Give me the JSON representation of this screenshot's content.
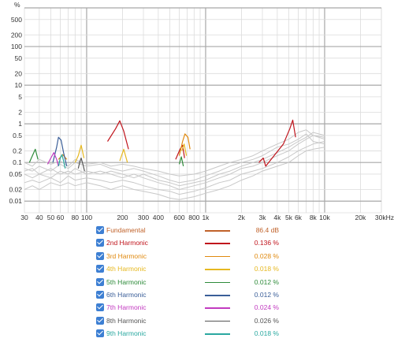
{
  "chart_data": {
    "type": "line",
    "xscale": "log",
    "yscale": "log",
    "xlim": [
      30,
      30000
    ],
    "ylim": [
      0.005,
      1000
    ],
    "y_unit": "%",
    "x_unit": "kHz",
    "grid": true,
    "x_ticks": [
      {
        "v": 30,
        "t": "30"
      },
      {
        "v": 40,
        "t": "40"
      },
      {
        "v": 50,
        "t": "50"
      },
      {
        "v": 60,
        "t": "60"
      },
      {
        "v": 80,
        "t": "80"
      },
      {
        "v": 100,
        "t": "100"
      },
      {
        "v": 200,
        "t": "200"
      },
      {
        "v": 300,
        "t": "300"
      },
      {
        "v": 400,
        "t": "400"
      },
      {
        "v": 600,
        "t": "600"
      },
      {
        "v": 800,
        "t": "800"
      },
      {
        "v": 1000,
        "t": "1k"
      },
      {
        "v": 2000,
        "t": "2k"
      },
      {
        "v": 3000,
        "t": "3k"
      },
      {
        "v": 4000,
        "t": "4k"
      },
      {
        "v": 5000,
        "t": "5k"
      },
      {
        "v": 6000,
        "t": "6k"
      },
      {
        "v": 8000,
        "t": "8k"
      },
      {
        "v": 10000,
        "t": "10k"
      },
      {
        "v": 20000,
        "t": "20k"
      },
      {
        "v": 30000,
        "t": "30kHz"
      }
    ],
    "y_ticks": [
      {
        "v": 500,
        "t": "500"
      },
      {
        "v": 200,
        "t": "200"
      },
      {
        "v": 100,
        "t": "100"
      },
      {
        "v": 50,
        "t": "50"
      },
      {
        "v": 20,
        "t": "20"
      },
      {
        "v": 10,
        "t": "10"
      },
      {
        "v": 5,
        "t": "5"
      },
      {
        "v": 2,
        "t": "2"
      },
      {
        "v": 1,
        "t": "1"
      },
      {
        "v": 0.5,
        "t": "0.5"
      },
      {
        "v": 0.2,
        "t": "0.2"
      },
      {
        "v": 0.1,
        "t": "0.1"
      },
      {
        "v": 0.05,
        "t": "0.05"
      },
      {
        "v": 0.02,
        "t": "0.02"
      },
      {
        "v": 0.01,
        "t": "0.01"
      }
    ],
    "series": [
      {
        "name": "Fundamental",
        "value_text": "86.4 dB",
        "color": "#c0622a",
        "x": [
          30,
          20000
        ],
        "y": [
          100,
          100
        ]
      },
      {
        "name": "2nd Harmonic",
        "value_text": "0.136 %",
        "color": "#c0141c",
        "x": [
          150,
          175,
          190,
          205,
          225,
          560,
          610,
          640,
          665,
          2800,
          3050,
          3200,
          4500,
          5100,
          5400,
          5700
        ],
        "y": [
          0.35,
          0.75,
          1.2,
          0.65,
          0.22,
          0.12,
          0.22,
          0.28,
          0.13,
          0.1,
          0.13,
          0.08,
          0.3,
          0.75,
          1.25,
          0.45
        ]
      },
      {
        "name": "3rd Harmonic",
        "value_text": "0.028 %",
        "color": "#e08a10",
        "x": [
          58,
          63,
          68,
          600,
          640,
          670,
          710,
          740
        ],
        "y": [
          0.12,
          0.16,
          0.12,
          0.15,
          0.35,
          0.55,
          0.45,
          0.22
        ]
      },
      {
        "name": "4th Harmonic",
        "value_text": "0.018 %",
        "color": "#e6b820",
        "x": [
          80,
          85,
          90,
          95,
          190,
          205,
          220,
          630,
          660,
          690
        ],
        "y": [
          0.1,
          0.15,
          0.28,
          0.13,
          0.11,
          0.22,
          0.1,
          0.2,
          0.3,
          0.15
        ]
      },
      {
        "name": "5th Harmonic",
        "value_text": "0.012 %",
        "color": "#2e8b3a",
        "x": [
          33,
          35,
          37,
          39,
          600,
          625,
          650
        ],
        "y": [
          0.1,
          0.15,
          0.22,
          0.12,
          0.09,
          0.14,
          0.08
        ]
      },
      {
        "name": "6th Harmonic",
        "value_text": "0.012 %",
        "color": "#3a5e98",
        "x": [
          52,
          56,
          58,
          61,
          64,
          68
        ],
        "y": [
          0.1,
          0.25,
          0.45,
          0.38,
          0.18,
          0.08
        ]
      },
      {
        "name": "7th Harmonic",
        "value_text": "0.024 %",
        "color": "#c23ac0",
        "x": [
          47,
          50,
          53,
          56,
          58
        ],
        "y": [
          0.09,
          0.13,
          0.18,
          0.12,
          0.08
        ]
      },
      {
        "name": "8th Harmonic",
        "value_text": "0.026 %",
        "color": "#555555",
        "x": [
          85,
          88,
          90,
          93,
          96
        ],
        "y": [
          0.07,
          0.11,
          0.13,
          0.09,
          0.06
        ]
      },
      {
        "name": "9th Harmonic",
        "value_text": "0.018 %",
        "color": "#2aa8a0",
        "x": [
          58,
          60,
          62,
          64,
          66
        ],
        "y": [
          0.08,
          0.13,
          0.16,
          0.11,
          0.07
        ]
      }
    ],
    "background_curves": [
      {
        "x": [
          30,
          35,
          40,
          50,
          60,
          70,
          80,
          100,
          130,
          160,
          200,
          250,
          300,
          400,
          500,
          600,
          800,
          1000,
          1300,
          1600,
          2000,
          2500,
          3000,
          4000,
          5000,
          6000,
          7000,
          8000,
          10000
        ],
        "y": [
          0.05,
          0.04,
          0.05,
          0.04,
          0.06,
          0.05,
          0.07,
          0.05,
          0.06,
          0.05,
          0.04,
          0.05,
          0.04,
          0.03,
          0.025,
          0.02,
          0.025,
          0.03,
          0.04,
          0.05,
          0.07,
          0.08,
          0.1,
          0.15,
          0.2,
          0.3,
          0.4,
          0.5,
          0.4
        ]
      },
      {
        "x": [
          30,
          35,
          40,
          50,
          60,
          70,
          80,
          100,
          130,
          160,
          200,
          250,
          300,
          400,
          500,
          600,
          800,
          1000,
          1300,
          1600,
          2000,
          2500,
          3000,
          4000,
          5000,
          6000,
          7000,
          8000,
          10000
        ],
        "y": [
          0.07,
          0.06,
          0.08,
          0.06,
          0.09,
          0.07,
          0.1,
          0.08,
          0.09,
          0.07,
          0.06,
          0.07,
          0.06,
          0.045,
          0.035,
          0.03,
          0.035,
          0.045,
          0.06,
          0.08,
          0.1,
          0.12,
          0.15,
          0.25,
          0.3,
          0.4,
          0.55,
          0.35,
          0.3
        ]
      },
      {
        "x": [
          30,
          35,
          40,
          50,
          60,
          70,
          80,
          100,
          130,
          160,
          200,
          250,
          300,
          400,
          500,
          600,
          800,
          1000,
          1300,
          1600,
          2000,
          2500,
          3000,
          4000,
          5000,
          6000,
          7000,
          8000,
          10000
        ],
        "y": [
          0.03,
          0.035,
          0.03,
          0.04,
          0.03,
          0.045,
          0.035,
          0.04,
          0.035,
          0.03,
          0.035,
          0.03,
          0.025,
          0.02,
          0.018,
          0.015,
          0.018,
          0.022,
          0.03,
          0.035,
          0.05,
          0.06,
          0.07,
          0.1,
          0.14,
          0.2,
          0.25,
          0.3,
          0.35
        ]
      },
      {
        "x": [
          30,
          35,
          40,
          50,
          60,
          70,
          80,
          100,
          130,
          160,
          200,
          250,
          300,
          400,
          500,
          600,
          800,
          1000,
          1300,
          1600,
          2000,
          2500,
          3000,
          4000,
          5000,
          6000,
          7000,
          8000,
          10000
        ],
        "y": [
          0.1,
          0.08,
          0.12,
          0.09,
          0.11,
          0.08,
          0.12,
          0.09,
          0.1,
          0.08,
          0.09,
          0.08,
          0.07,
          0.06,
          0.05,
          0.045,
          0.05,
          0.06,
          0.08,
          0.1,
          0.12,
          0.15,
          0.2,
          0.3,
          0.4,
          0.6,
          0.7,
          0.5,
          0.45
        ]
      },
      {
        "x": [
          30,
          35,
          40,
          50,
          60,
          70,
          80,
          100,
          130,
          160,
          200,
          250,
          300,
          400,
          500,
          600,
          800,
          1000,
          1300,
          1600,
          2000,
          2500,
          3000,
          4000,
          5000,
          6000,
          7000,
          8000,
          10000
        ],
        "y": [
          0.02,
          0.025,
          0.02,
          0.03,
          0.025,
          0.03,
          0.025,
          0.03,
          0.025,
          0.02,
          0.025,
          0.02,
          0.018,
          0.015,
          0.012,
          0.011,
          0.013,
          0.016,
          0.02,
          0.025,
          0.035,
          0.045,
          0.06,
          0.08,
          0.1,
          0.15,
          0.2,
          0.22,
          0.25
        ]
      },
      {
        "x": [
          30,
          35,
          40,
          50,
          60,
          70,
          80,
          100,
          130,
          160,
          200,
          250,
          300,
          400,
          500,
          600,
          800,
          1000,
          1300,
          1600,
          2000,
          2500,
          3000,
          4000,
          5000,
          6000,
          7000,
          8000,
          10000
        ],
        "y": [
          0.06,
          0.07,
          0.05,
          0.07,
          0.05,
          0.06,
          0.05,
          0.06,
          0.05,
          0.06,
          0.05,
          0.04,
          0.05,
          0.035,
          0.03,
          0.025,
          0.03,
          0.035,
          0.05,
          0.06,
          0.08,
          0.1,
          0.12,
          0.18,
          0.25,
          0.35,
          0.45,
          0.6,
          0.5
        ]
      }
    ]
  }
}
